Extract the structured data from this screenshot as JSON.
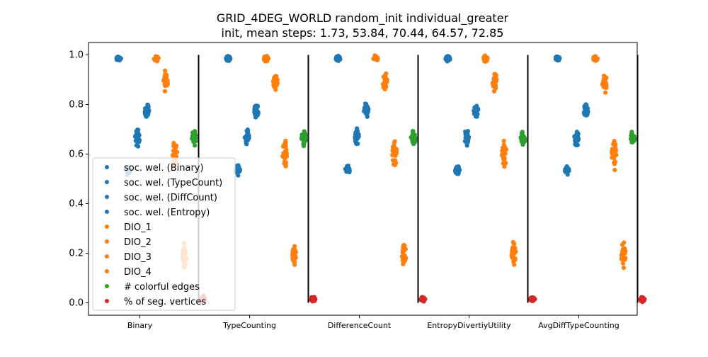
{
  "chart_data": {
    "type": "scatter",
    "title_line1": "GRID_4DEG_WORLD random_init individual_greater",
    "title_line2": "init, mean steps: 1.73, 53.84, 70.44, 64.57, 72.85",
    "categories": [
      "Binary",
      "TypeCounting",
      "DifferenceCount",
      "EntropyDivertiyUtility",
      "AvgDiffTypeCounting"
    ],
    "ylim": [
      -0.05,
      1.05
    ],
    "yticks": [
      "0.0",
      "0.2",
      "0.4",
      "0.6",
      "0.8",
      "1.0"
    ],
    "grid": false,
    "legend_position": "center-left",
    "series": [
      {
        "name": "soc. wel. (Binary)",
        "color": "#1f77b4",
        "center": 0.985,
        "spread": 0.015
      },
      {
        "name": "soc. wel. (TypeCount)",
        "color": "#1f77b4",
        "center": 0.535,
        "spread": 0.025
      },
      {
        "name": "soc. wel. (DiffCount)",
        "color": "#1f77b4",
        "center": 0.665,
        "spread": 0.05
      },
      {
        "name": "soc. wel. (Entropy)",
        "color": "#1f77b4",
        "center": 0.775,
        "spread": 0.04
      },
      {
        "name": "DIO_1",
        "color": "#ff7f0e",
        "center": 0.985,
        "spread": 0.015
      },
      {
        "name": "DIO_2",
        "color": "#ff7f0e",
        "center": 0.89,
        "spread": 0.05
      },
      {
        "name": "DIO_3",
        "color": "#ff7f0e",
        "center": 0.6,
        "spread": 0.08
      },
      {
        "name": "DIO_4",
        "color": "#ff7f0e",
        "center": 0.195,
        "spread": 0.06
      },
      {
        "name": "# colorful edges",
        "color": "#2ca02c",
        "center": 0.665,
        "spread": 0.04
      },
      {
        "name": "% of seg. vertices",
        "color": "#d62728",
        "center": 0.015,
        "spread": 0.015
      }
    ],
    "legend_bins": [
      0,
      1,
      2,
      3
    ]
  }
}
